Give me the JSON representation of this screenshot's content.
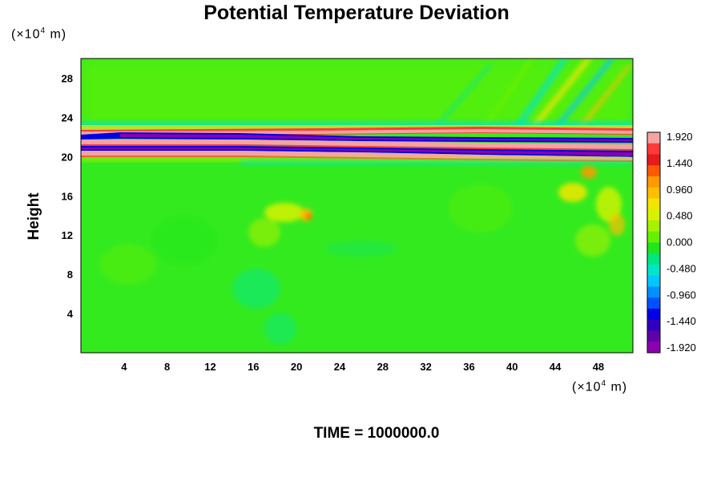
{
  "chart_data": {
    "type": "heatmap",
    "title": "Potential Temperature Deviation",
    "ylabel": "Height",
    "xunit_prefix": "(×10",
    "xunit_exp": "4",
    "xunit_suffix": " m)",
    "yunit_prefix": "(×10",
    "yunit_exp": "4",
    "yunit_suffix": " m)",
    "footer": "TIME = 1000000.0",
    "xlim": [
      0,
      51.2
    ],
    "ylim": [
      0,
      30
    ],
    "x_ticks": [
      "4",
      "8",
      "12",
      "16",
      "20",
      "24",
      "28",
      "32",
      "36",
      "40",
      "44",
      "48"
    ],
    "y_ticks": [
      "4",
      "8",
      "12",
      "16",
      "20",
      "24",
      "28"
    ],
    "colorbar": {
      "range": [
        -1.92,
        1.92
      ],
      "labels": [
        "1.920",
        "1.440",
        "0.960",
        "0.480",
        "0.000",
        "-0.480",
        "-0.960",
        "-1.440",
        "-1.920"
      ],
      "colors": [
        "#f4a3a3",
        "#ff3a3a",
        "#e61b1b",
        "#ff5a00",
        "#ff9900",
        "#ffbf00",
        "#f2e600",
        "#d6f200",
        "#a6f200",
        "#66f000",
        "#1fe61f",
        "#00e680",
        "#00e6c8",
        "#00c8ff",
        "#0090ff",
        "#0050ff",
        "#0000e6",
        "#3000c0",
        "#6000a8",
        "#8c00b0"
      ]
    },
    "features": [
      {
        "name": "wave duct",
        "x_range": [
          0,
          51.2
        ],
        "y_range": [
          19.5,
          23
        ],
        "values": "alternating -1.92 to 1.92"
      },
      {
        "name": "convective anomalies",
        "x_range": [
          15,
          22
        ],
        "y_range": [
          10,
          16
        ],
        "values": "up to 0.96"
      },
      {
        "name": "convective anomalies",
        "x_range": [
          44,
          51.2
        ],
        "y_range": [
          11,
          18
        ],
        "values": "up to 0.96"
      }
    ]
  }
}
